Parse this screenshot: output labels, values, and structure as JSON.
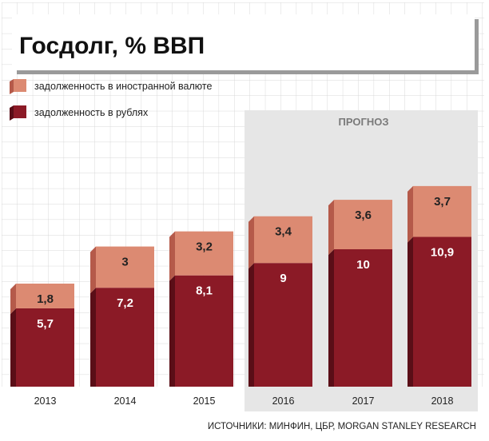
{
  "chart_data": {
    "type": "bar",
    "stacked": true,
    "title": "Госдолг, % ВВП",
    "categories": [
      "2013",
      "2014",
      "2015",
      "2016",
      "2017",
      "2018"
    ],
    "series": [
      {
        "name": "задолженность в рублях",
        "values": [
          5.7,
          7.2,
          8.1,
          9,
          10,
          10.9
        ],
        "labels": [
          "5,7",
          "7,2",
          "8,1",
          "9",
          "10",
          "10,9"
        ],
        "color": "#8b1a26"
      },
      {
        "name": "задолженность в иностранной валюте",
        "values": [
          1.8,
          3,
          3.2,
          3.4,
          3.6,
          3.7
        ],
        "labels": [
          "1,8",
          "3",
          "3,2",
          "3,4",
          "3,6",
          "3,7"
        ],
        "color": "#dc8a72"
      }
    ],
    "forecast": {
      "label": "ПРОГНОЗ",
      "categories": [
        "2016",
        "2017",
        "2018"
      ]
    },
    "ylim": [
      0,
      17
    ],
    "grid": true,
    "legend_position": "top-left"
  },
  "source": "ИСТОЧНИКИ: МИНФИН, ЦБР, MORGAN STANLEY RESEARCH"
}
